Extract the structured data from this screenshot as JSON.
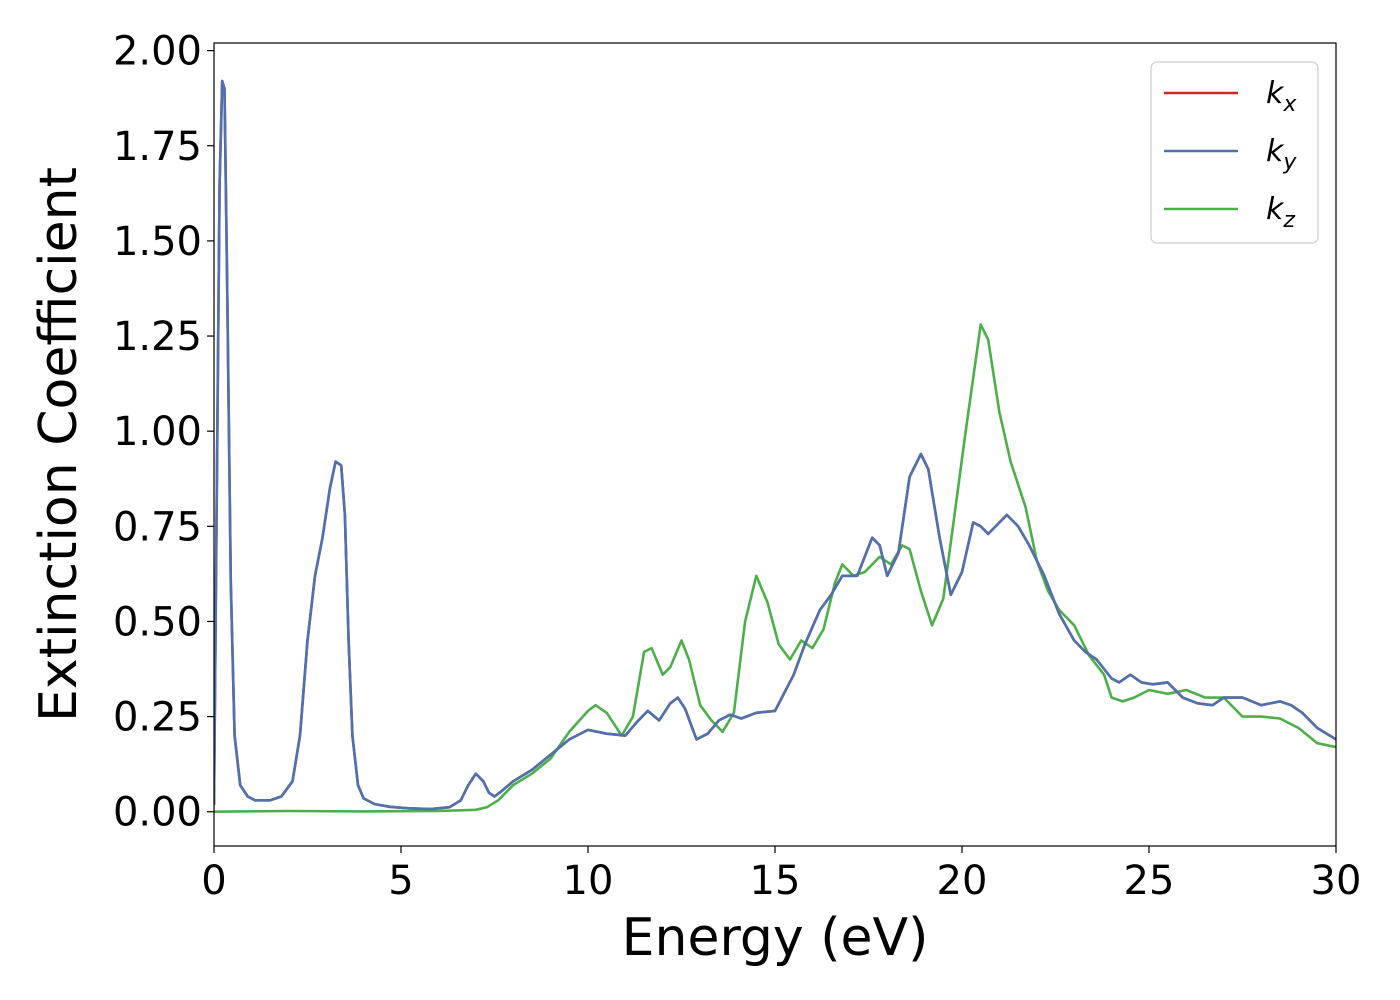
{
  "chart_data": {
    "type": "line",
    "title": "",
    "xlabel": "Energy (eV)",
    "ylabel": "Extinction Coefficient",
    "xlim": [
      0,
      30
    ],
    "ylim": [
      -0.09,
      2.02
    ],
    "xticks": [
      0,
      5,
      10,
      15,
      20,
      25,
      30
    ],
    "yticks": [
      0.0,
      0.25,
      0.5,
      0.75,
      1.0,
      1.25,
      1.5,
      1.75,
      2.0
    ],
    "grid": false,
    "legend_position": "top-right",
    "series": [
      {
        "name": "k",
        "subscript": "x",
        "color": "#d62728",
        "x": [
          0,
          0.08,
          0.15,
          0.22,
          0.28,
          0.35,
          0.45,
          0.55,
          0.7,
          0.9,
          1.1,
          1.3,
          1.5,
          1.8,
          2.1,
          2.3,
          2.5,
          2.7,
          2.9,
          3.1,
          3.25,
          3.4,
          3.5,
          3.6,
          3.7,
          3.85,
          4.0,
          4.3,
          4.7,
          5.2,
          5.8,
          6.3,
          6.6,
          6.8,
          7.0,
          7.2,
          7.35,
          7.5,
          7.7,
          8.0,
          8.5,
          9.0,
          9.5,
          10.0,
          10.5,
          11.0,
          11.3,
          11.6,
          11.9,
          12.2,
          12.4,
          12.6,
          12.9,
          13.2,
          13.5,
          13.8,
          14.1,
          14.5,
          15.0,
          15.5,
          15.8,
          16.2,
          16.5,
          16.8,
          17.2,
          17.6,
          17.8,
          18.0,
          18.3,
          18.6,
          18.9,
          19.1,
          19.4,
          19.7,
          20.0,
          20.3,
          20.5,
          20.7,
          21.0,
          21.2,
          21.5,
          21.8,
          22.2,
          22.6,
          23.0,
          23.3,
          23.6,
          24.0,
          24.2,
          24.5,
          24.8,
          25.1,
          25.5,
          25.9,
          26.3,
          26.7,
          27.0,
          27.5,
          28.0,
          28.5,
          28.8,
          29.1,
          29.5,
          30.0
        ],
        "y": [
          0.02,
          0.9,
          1.65,
          1.92,
          1.9,
          1.4,
          0.6,
          0.2,
          0.07,
          0.04,
          0.03,
          0.03,
          0.03,
          0.04,
          0.08,
          0.2,
          0.45,
          0.62,
          0.72,
          0.85,
          0.92,
          0.91,
          0.78,
          0.45,
          0.2,
          0.07,
          0.035,
          0.02,
          0.013,
          0.009,
          0.007,
          0.012,
          0.03,
          0.07,
          0.1,
          0.08,
          0.05,
          0.04,
          0.055,
          0.08,
          0.11,
          0.15,
          0.19,
          0.215,
          0.205,
          0.2,
          0.235,
          0.265,
          0.24,
          0.285,
          0.3,
          0.27,
          0.19,
          0.205,
          0.24,
          0.255,
          0.245,
          0.26,
          0.265,
          0.36,
          0.44,
          0.53,
          0.57,
          0.62,
          0.62,
          0.72,
          0.7,
          0.62,
          0.68,
          0.88,
          0.94,
          0.9,
          0.72,
          0.57,
          0.63,
          0.76,
          0.75,
          0.73,
          0.76,
          0.78,
          0.75,
          0.7,
          0.62,
          0.52,
          0.45,
          0.42,
          0.4,
          0.35,
          0.34,
          0.36,
          0.34,
          0.335,
          0.34,
          0.3,
          0.285,
          0.28,
          0.3,
          0.3,
          0.28,
          0.29,
          0.28,
          0.26,
          0.22,
          0.19
        ]
      },
      {
        "name": "k",
        "subscript": "y",
        "color": "#4c72b0",
        "x": [
          0,
          0.08,
          0.15,
          0.22,
          0.28,
          0.35,
          0.45,
          0.55,
          0.7,
          0.9,
          1.1,
          1.3,
          1.5,
          1.8,
          2.1,
          2.3,
          2.5,
          2.7,
          2.9,
          3.1,
          3.25,
          3.4,
          3.5,
          3.6,
          3.7,
          3.85,
          4.0,
          4.3,
          4.7,
          5.2,
          5.8,
          6.3,
          6.6,
          6.8,
          7.0,
          7.2,
          7.35,
          7.5,
          7.7,
          8.0,
          8.5,
          9.0,
          9.5,
          10.0,
          10.5,
          11.0,
          11.3,
          11.6,
          11.9,
          12.2,
          12.4,
          12.6,
          12.9,
          13.2,
          13.5,
          13.8,
          14.1,
          14.5,
          15.0,
          15.5,
          15.8,
          16.2,
          16.5,
          16.8,
          17.2,
          17.6,
          17.8,
          18.0,
          18.3,
          18.6,
          18.9,
          19.1,
          19.4,
          19.7,
          20.0,
          20.3,
          20.5,
          20.7,
          21.0,
          21.2,
          21.5,
          21.8,
          22.2,
          22.6,
          23.0,
          23.3,
          23.6,
          24.0,
          24.2,
          24.5,
          24.8,
          25.1,
          25.5,
          25.9,
          26.3,
          26.7,
          27.0,
          27.5,
          28.0,
          28.5,
          28.8,
          29.1,
          29.5,
          30.0
        ],
        "y": [
          0.02,
          0.9,
          1.65,
          1.92,
          1.9,
          1.4,
          0.6,
          0.2,
          0.07,
          0.04,
          0.03,
          0.03,
          0.03,
          0.04,
          0.08,
          0.2,
          0.45,
          0.62,
          0.72,
          0.85,
          0.92,
          0.91,
          0.78,
          0.45,
          0.2,
          0.07,
          0.035,
          0.02,
          0.013,
          0.009,
          0.007,
          0.012,
          0.03,
          0.07,
          0.1,
          0.08,
          0.05,
          0.04,
          0.055,
          0.08,
          0.11,
          0.15,
          0.19,
          0.215,
          0.205,
          0.2,
          0.235,
          0.265,
          0.24,
          0.285,
          0.3,
          0.27,
          0.19,
          0.205,
          0.24,
          0.255,
          0.245,
          0.26,
          0.265,
          0.36,
          0.44,
          0.53,
          0.57,
          0.62,
          0.62,
          0.72,
          0.7,
          0.62,
          0.68,
          0.88,
          0.94,
          0.9,
          0.72,
          0.57,
          0.63,
          0.76,
          0.75,
          0.73,
          0.76,
          0.78,
          0.75,
          0.7,
          0.62,
          0.52,
          0.45,
          0.42,
          0.4,
          0.35,
          0.34,
          0.36,
          0.34,
          0.335,
          0.34,
          0.3,
          0.285,
          0.28,
          0.3,
          0.3,
          0.28,
          0.29,
          0.28,
          0.26,
          0.22,
          0.19
        ]
      },
      {
        "name": "k",
        "subscript": "z",
        "color": "#4daf4a",
        "x": [
          0,
          2,
          4,
          6,
          7.0,
          7.3,
          7.6,
          8.0,
          8.5,
          9.0,
          9.5,
          10.0,
          10.2,
          10.5,
          10.9,
          11.2,
          11.5,
          11.7,
          12.0,
          12.2,
          12.5,
          12.7,
          13.0,
          13.3,
          13.6,
          13.9,
          14.2,
          14.5,
          14.8,
          15.1,
          15.4,
          15.7,
          16.0,
          16.3,
          16.6,
          16.8,
          17.1,
          17.4,
          17.8,
          18.1,
          18.4,
          18.6,
          18.9,
          19.2,
          19.5,
          19.8,
          20.1,
          20.3,
          20.5,
          20.7,
          21.0,
          21.3,
          21.7,
          22.0,
          22.3,
          22.6,
          23.0,
          23.4,
          23.8,
          24.0,
          24.3,
          24.6,
          25.0,
          25.5,
          26.0,
          26.5,
          27.0,
          27.5,
          28.0,
          28.5,
          29.0,
          29.5,
          30.0
        ],
        "y": [
          0.0,
          0.002,
          0.001,
          0.002,
          0.005,
          0.012,
          0.03,
          0.07,
          0.1,
          0.14,
          0.21,
          0.265,
          0.28,
          0.26,
          0.2,
          0.25,
          0.42,
          0.43,
          0.36,
          0.38,
          0.45,
          0.4,
          0.28,
          0.24,
          0.21,
          0.26,
          0.5,
          0.62,
          0.55,
          0.44,
          0.4,
          0.45,
          0.43,
          0.48,
          0.6,
          0.65,
          0.62,
          0.63,
          0.67,
          0.65,
          0.7,
          0.69,
          0.58,
          0.49,
          0.56,
          0.78,
          1.0,
          1.14,
          1.28,
          1.24,
          1.05,
          0.92,
          0.8,
          0.66,
          0.58,
          0.53,
          0.49,
          0.41,
          0.36,
          0.3,
          0.29,
          0.3,
          0.32,
          0.31,
          0.32,
          0.3,
          0.3,
          0.25,
          0.25,
          0.245,
          0.22,
          0.18,
          0.17
        ]
      }
    ]
  }
}
